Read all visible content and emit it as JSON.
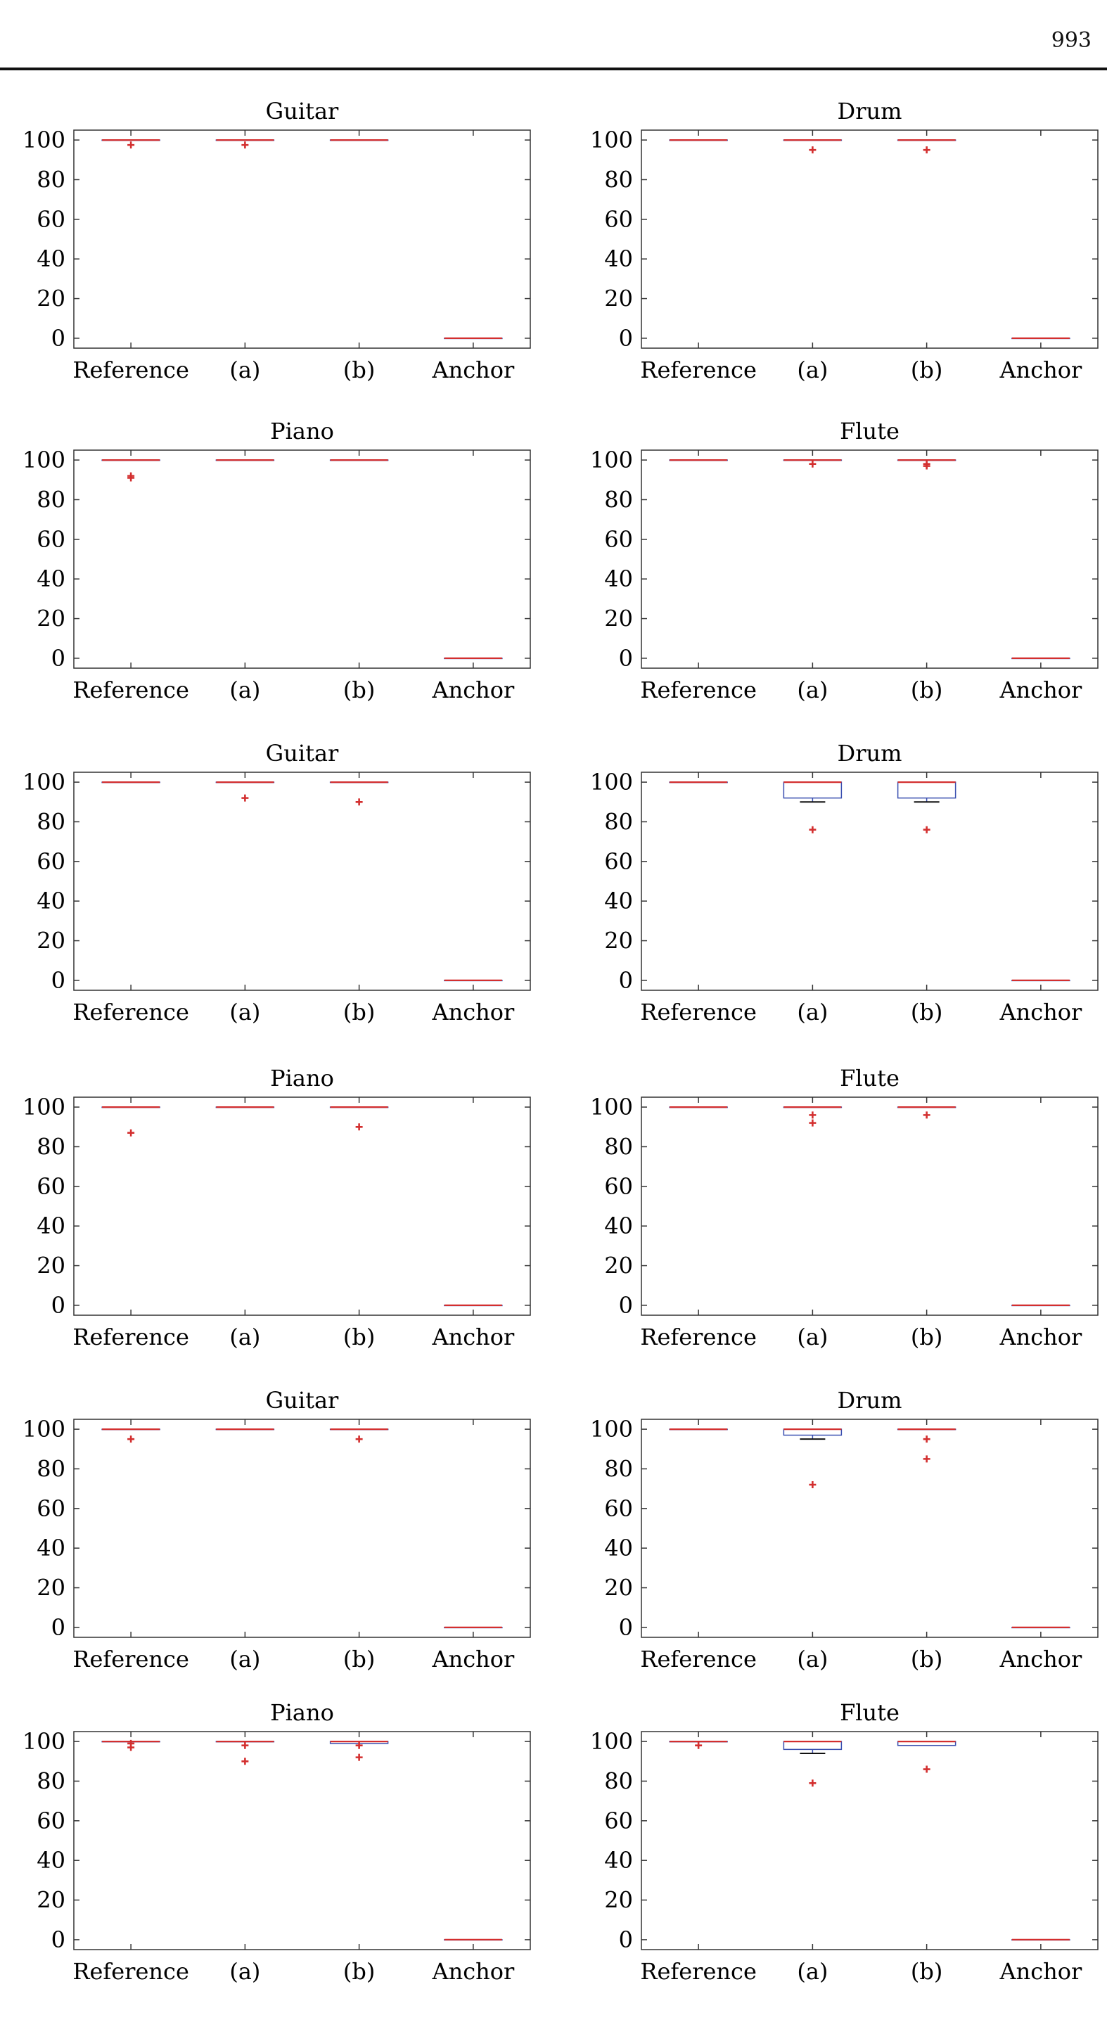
{
  "page": {
    "number": "993"
  },
  "colors": {
    "box": "#3a4fb0",
    "median": "#d32f2f",
    "outlier": "#d32f2f",
    "axis": "#333333"
  },
  "chart_data": [
    {
      "type": "box",
      "title": "Guitar",
      "categories": [
        "Reference",
        "(a)",
        "(b)",
        "Anchor"
      ],
      "ylim": [
        -5,
        105
      ],
      "yticks": [
        0,
        20,
        40,
        60,
        80,
        100
      ],
      "boxes": [
        {
          "q1": 100,
          "median": 100,
          "q3": 100,
          "whisker_low": 100,
          "whisker_high": 100,
          "outliers": [
            97.5
          ]
        },
        {
          "q1": 100,
          "median": 100,
          "q3": 100,
          "whisker_low": 100,
          "whisker_high": 100,
          "outliers": [
            97.5
          ]
        },
        {
          "q1": 100,
          "median": 100,
          "q3": 100,
          "whisker_low": 100,
          "whisker_high": 100,
          "outliers": []
        },
        {
          "q1": 0,
          "median": 0,
          "q3": 0,
          "whisker_low": 0,
          "whisker_high": 0,
          "outliers": []
        }
      ]
    },
    {
      "type": "box",
      "title": "Drum",
      "categories": [
        "Reference",
        "(a)",
        "(b)",
        "Anchor"
      ],
      "ylim": [
        -5,
        105
      ],
      "yticks": [
        0,
        20,
        40,
        60,
        80,
        100
      ],
      "boxes": [
        {
          "q1": 100,
          "median": 100,
          "q3": 100,
          "whisker_low": 100,
          "whisker_high": 100,
          "outliers": []
        },
        {
          "q1": 100,
          "median": 100,
          "q3": 100,
          "whisker_low": 100,
          "whisker_high": 100,
          "outliers": [
            95
          ]
        },
        {
          "q1": 100,
          "median": 100,
          "q3": 100,
          "whisker_low": 100,
          "whisker_high": 100,
          "outliers": [
            95
          ]
        },
        {
          "q1": 0,
          "median": 0,
          "q3": 0,
          "whisker_low": 0,
          "whisker_high": 0,
          "outliers": []
        }
      ]
    },
    {
      "type": "box",
      "title": "Piano",
      "categories": [
        "Reference",
        "(a)",
        "(b)",
        "Anchor"
      ],
      "ylim": [
        -5,
        105
      ],
      "yticks": [
        0,
        20,
        40,
        60,
        80,
        100
      ],
      "boxes": [
        {
          "q1": 100,
          "median": 100,
          "q3": 100,
          "whisker_low": 100,
          "whisker_high": 100,
          "outliers": [
            91,
            92
          ]
        },
        {
          "q1": 100,
          "median": 100,
          "q3": 100,
          "whisker_low": 100,
          "whisker_high": 100,
          "outliers": []
        },
        {
          "q1": 100,
          "median": 100,
          "q3": 100,
          "whisker_low": 100,
          "whisker_high": 100,
          "outliers": []
        },
        {
          "q1": 0,
          "median": 0,
          "q3": 0,
          "whisker_low": 0,
          "whisker_high": 0,
          "outliers": []
        }
      ]
    },
    {
      "type": "box",
      "title": "Flute",
      "categories": [
        "Reference",
        "(a)",
        "(b)",
        "Anchor"
      ],
      "ylim": [
        -5,
        105
      ],
      "yticks": [
        0,
        20,
        40,
        60,
        80,
        100
      ],
      "boxes": [
        {
          "q1": 100,
          "median": 100,
          "q3": 100,
          "whisker_low": 100,
          "whisker_high": 100,
          "outliers": []
        },
        {
          "q1": 100,
          "median": 100,
          "q3": 100,
          "whisker_low": 100,
          "whisker_high": 100,
          "outliers": [
            98
          ]
        },
        {
          "q1": 100,
          "median": 100,
          "q3": 100,
          "whisker_low": 100,
          "whisker_high": 100,
          "outliers": [
            97,
            98
          ]
        },
        {
          "q1": 0,
          "median": 0,
          "q3": 0,
          "whisker_low": 0,
          "whisker_high": 0,
          "outliers": []
        }
      ]
    },
    {
      "type": "box",
      "title": "Guitar",
      "categories": [
        "Reference",
        "(a)",
        "(b)",
        "Anchor"
      ],
      "ylim": [
        -5,
        105
      ],
      "yticks": [
        0,
        20,
        40,
        60,
        80,
        100
      ],
      "boxes": [
        {
          "q1": 100,
          "median": 100,
          "q3": 100,
          "whisker_low": 100,
          "whisker_high": 100,
          "outliers": []
        },
        {
          "q1": 100,
          "median": 100,
          "q3": 100,
          "whisker_low": 100,
          "whisker_high": 100,
          "outliers": [
            92
          ]
        },
        {
          "q1": 100,
          "median": 100,
          "q3": 100,
          "whisker_low": 100,
          "whisker_high": 100,
          "outliers": [
            90
          ]
        },
        {
          "q1": 0,
          "median": 0,
          "q3": 0,
          "whisker_low": 0,
          "whisker_high": 0,
          "outliers": []
        }
      ]
    },
    {
      "type": "box",
      "title": "Drum",
      "categories": [
        "Reference",
        "(a)",
        "(b)",
        "Anchor"
      ],
      "ylim": [
        -5,
        105
      ],
      "yticks": [
        0,
        20,
        40,
        60,
        80,
        100
      ],
      "boxes": [
        {
          "q1": 100,
          "median": 100,
          "q3": 100,
          "whisker_low": 100,
          "whisker_high": 100,
          "outliers": []
        },
        {
          "q1": 92,
          "median": 100,
          "q3": 100,
          "whisker_low": 90,
          "whisker_high": 100,
          "outliers": [
            76
          ]
        },
        {
          "q1": 92,
          "median": 100,
          "q3": 100,
          "whisker_low": 90,
          "whisker_high": 100,
          "outliers": [
            76
          ]
        },
        {
          "q1": 0,
          "median": 0,
          "q3": 0,
          "whisker_low": 0,
          "whisker_high": 0,
          "outliers": []
        }
      ]
    },
    {
      "type": "box",
      "title": "Piano",
      "categories": [
        "Reference",
        "(a)",
        "(b)",
        "Anchor"
      ],
      "ylim": [
        -5,
        105
      ],
      "yticks": [
        0,
        20,
        40,
        60,
        80,
        100
      ],
      "boxes": [
        {
          "q1": 100,
          "median": 100,
          "q3": 100,
          "whisker_low": 100,
          "whisker_high": 100,
          "outliers": [
            87
          ]
        },
        {
          "q1": 100,
          "median": 100,
          "q3": 100,
          "whisker_low": 100,
          "whisker_high": 100,
          "outliers": []
        },
        {
          "q1": 100,
          "median": 100,
          "q3": 100,
          "whisker_low": 100,
          "whisker_high": 100,
          "outliers": [
            90
          ]
        },
        {
          "q1": 0,
          "median": 0,
          "q3": 0,
          "whisker_low": 0,
          "whisker_high": 0,
          "outliers": []
        }
      ]
    },
    {
      "type": "box",
      "title": "Flute",
      "categories": [
        "Reference",
        "(a)",
        "(b)",
        "Anchor"
      ],
      "ylim": [
        -5,
        105
      ],
      "yticks": [
        0,
        20,
        40,
        60,
        80,
        100
      ],
      "boxes": [
        {
          "q1": 100,
          "median": 100,
          "q3": 100,
          "whisker_low": 100,
          "whisker_high": 100,
          "outliers": []
        },
        {
          "q1": 100,
          "median": 100,
          "q3": 100,
          "whisker_low": 100,
          "whisker_high": 100,
          "outliers": [
            92,
            96
          ]
        },
        {
          "q1": 100,
          "median": 100,
          "q3": 100,
          "whisker_low": 100,
          "whisker_high": 100,
          "outliers": [
            96
          ]
        },
        {
          "q1": 0,
          "median": 0,
          "q3": 0,
          "whisker_low": 0,
          "whisker_high": 0,
          "outliers": []
        }
      ]
    },
    {
      "type": "box",
      "title": "Guitar",
      "categories": [
        "Reference",
        "(a)",
        "(b)",
        "Anchor"
      ],
      "ylim": [
        -5,
        105
      ],
      "yticks": [
        0,
        20,
        40,
        60,
        80,
        100
      ],
      "boxes": [
        {
          "q1": 100,
          "median": 100,
          "q3": 100,
          "whisker_low": 100,
          "whisker_high": 100,
          "outliers": [
            95
          ]
        },
        {
          "q1": 100,
          "median": 100,
          "q3": 100,
          "whisker_low": 100,
          "whisker_high": 100,
          "outliers": []
        },
        {
          "q1": 100,
          "median": 100,
          "q3": 100,
          "whisker_low": 100,
          "whisker_high": 100,
          "outliers": [
            95
          ]
        },
        {
          "q1": 0,
          "median": 0,
          "q3": 0,
          "whisker_low": 0,
          "whisker_high": 0,
          "outliers": []
        }
      ]
    },
    {
      "type": "box",
      "title": "Drum",
      "categories": [
        "Reference",
        "(a)",
        "(b)",
        "Anchor"
      ],
      "ylim": [
        -5,
        105
      ],
      "yticks": [
        0,
        20,
        40,
        60,
        80,
        100
      ],
      "boxes": [
        {
          "q1": 100,
          "median": 100,
          "q3": 100,
          "whisker_low": 100,
          "whisker_high": 100,
          "outliers": []
        },
        {
          "q1": 97,
          "median": 100,
          "q3": 100,
          "whisker_low": 95,
          "whisker_high": 100,
          "outliers": [
            72
          ]
        },
        {
          "q1": 100,
          "median": 100,
          "q3": 100,
          "whisker_low": 100,
          "whisker_high": 100,
          "outliers": [
            95,
            85
          ]
        },
        {
          "q1": 0,
          "median": 0,
          "q3": 0,
          "whisker_low": 0,
          "whisker_high": 0,
          "outliers": []
        }
      ]
    },
    {
      "type": "box",
      "title": "Piano",
      "categories": [
        "Reference",
        "(a)",
        "(b)",
        "Anchor"
      ],
      "ylim": [
        -5,
        105
      ],
      "yticks": [
        0,
        20,
        40,
        60,
        80,
        100
      ],
      "boxes": [
        {
          "q1": 100,
          "median": 100,
          "q3": 100,
          "whisker_low": 100,
          "whisker_high": 100,
          "outliers": [
            97,
            99
          ]
        },
        {
          "q1": 100,
          "median": 100,
          "q3": 100,
          "whisker_low": 100,
          "whisker_high": 100,
          "outliers": [
            90,
            98
          ]
        },
        {
          "q1": 99,
          "median": 100,
          "q3": 100,
          "whisker_low": 99,
          "whisker_high": 100,
          "outliers": [
            92,
            98
          ]
        },
        {
          "q1": 0,
          "median": 0,
          "q3": 0,
          "whisker_low": 0,
          "whisker_high": 0,
          "outliers": []
        }
      ]
    },
    {
      "type": "box",
      "title": "Flute",
      "categories": [
        "Reference",
        "(a)",
        "(b)",
        "Anchor"
      ],
      "ylim": [
        -5,
        105
      ],
      "yticks": [
        0,
        20,
        40,
        60,
        80,
        100
      ],
      "boxes": [
        {
          "q1": 100,
          "median": 100,
          "q3": 100,
          "whisker_low": 100,
          "whisker_high": 100,
          "outliers": [
            98
          ]
        },
        {
          "q1": 96,
          "median": 100,
          "q3": 100,
          "whisker_low": 94,
          "whisker_high": 100,
          "outliers": [
            79
          ]
        },
        {
          "q1": 98,
          "median": 100,
          "q3": 100,
          "whisker_low": 98,
          "whisker_high": 100,
          "outliers": [
            86
          ]
        },
        {
          "q1": 0,
          "median": 0,
          "q3": 0,
          "whisker_low": 0,
          "whisker_high": 0,
          "outliers": []
        }
      ]
    }
  ]
}
